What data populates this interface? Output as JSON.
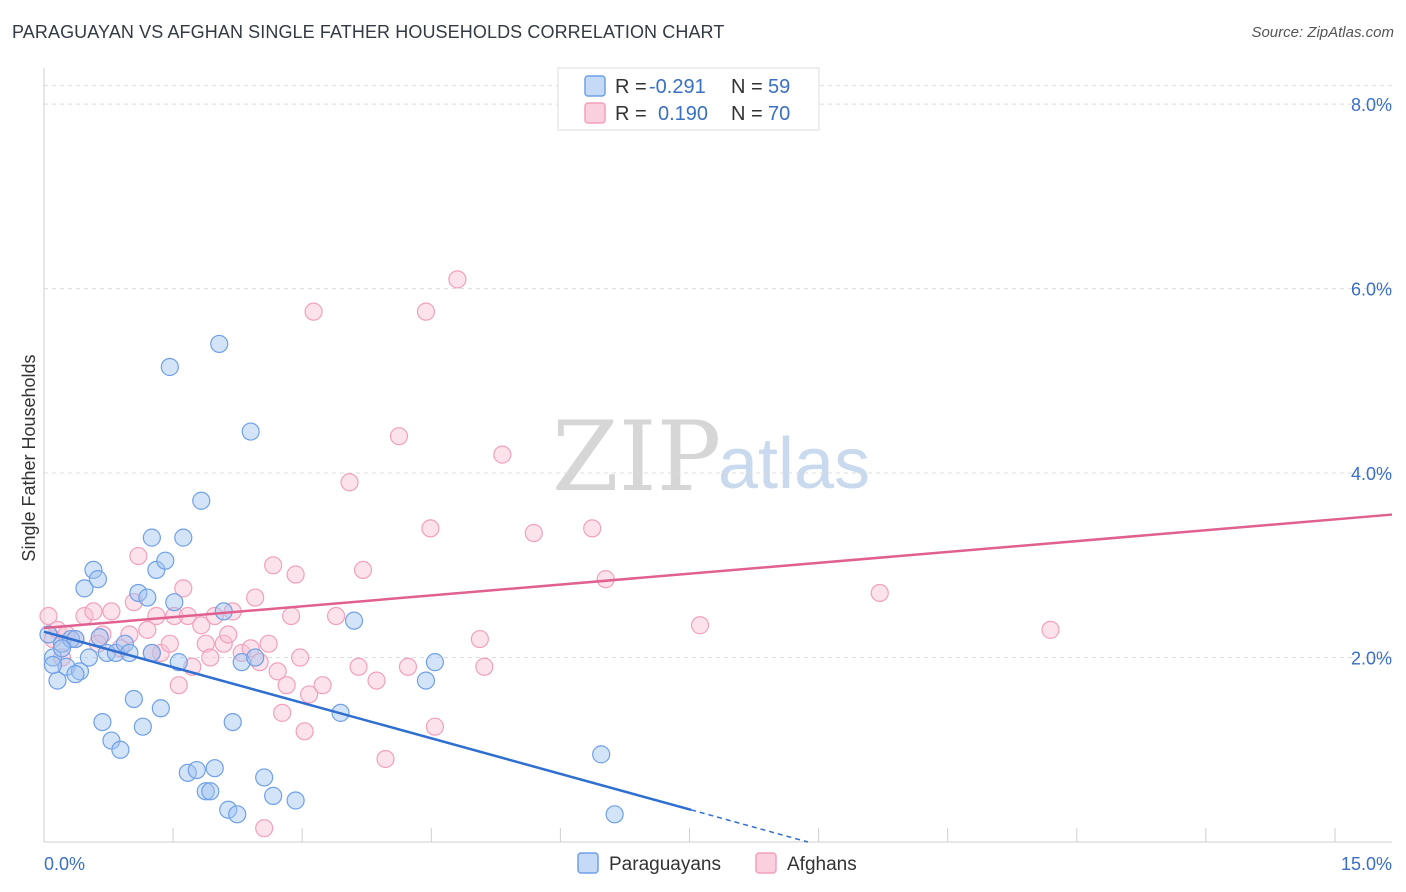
{
  "header": {
    "title": "PARAGUAYAN VS AFGHAN SINGLE FATHER HOUSEHOLDS CORRELATION CHART",
    "source": "Source: ZipAtlas.com"
  },
  "watermark": {
    "zip": "ZIP",
    "atlas": "atlas"
  },
  "legend": {
    "r_label": "R =",
    "n_label": "N =",
    "rows": [
      {
        "series": "Paraguayans",
        "r": "-0.291",
        "n": "59"
      },
      {
        "series": "Afghans",
        "r": "0.190",
        "n": "70"
      }
    ]
  },
  "chart_data": {
    "type": "scatter",
    "title": "PARAGUAYAN VS AFGHAN SINGLE FATHER HOUSEHOLDS CORRELATION CHART",
    "xlabel": "",
    "ylabel": "Single Father Households",
    "xlim": [
      0,
      15
    ],
    "ylim": [
      0,
      8.5
    ],
    "x_tick_labels": [
      "0.0%",
      "15.0%"
    ],
    "y_ticks": [
      2,
      4,
      6,
      8
    ],
    "y_tick_labels": [
      "2.0%",
      "4.0%",
      "6.0%",
      "8.0%"
    ],
    "colors": {
      "Paraguayans": "#6fa0e8",
      "Afghans": "#f2a0bc",
      "blue_line": "#2f6fd0",
      "pink_line": "#e0608f",
      "value_text": "#3a6fc4"
    },
    "series": [
      {
        "name": "Paraguayans",
        "r": -0.291,
        "n": 59,
        "trend": {
          "x0": 0.0,
          "y0": 2.28,
          "x1": 8.5,
          "y1": 0.0,
          "solid_until_x": 7.2
        },
        "points": [
          [
            0.05,
            2.25
          ],
          [
            0.1,
            2.0
          ],
          [
            0.15,
            1.75
          ],
          [
            0.2,
            2.15
          ],
          [
            0.25,
            1.9
          ],
          [
            0.3,
            2.2
          ],
          [
            0.35,
            2.2
          ],
          [
            0.4,
            1.85
          ],
          [
            0.45,
            2.75
          ],
          [
            0.5,
            2.0
          ],
          [
            0.55,
            2.95
          ],
          [
            0.6,
            2.85
          ],
          [
            0.65,
            1.3
          ],
          [
            0.7,
            2.05
          ],
          [
            0.75,
            1.1
          ],
          [
            0.8,
            2.05
          ],
          [
            0.85,
            1.0
          ],
          [
            0.9,
            2.15
          ],
          [
            0.95,
            2.05
          ],
          [
            1.0,
            1.55
          ],
          [
            1.05,
            2.7
          ],
          [
            1.1,
            1.25
          ],
          [
            1.15,
            2.65
          ],
          [
            1.2,
            3.3
          ],
          [
            1.25,
            2.95
          ],
          [
            1.3,
            1.45
          ],
          [
            1.35,
            3.05
          ],
          [
            1.4,
            5.15
          ],
          [
            1.45,
            2.6
          ],
          [
            1.5,
            1.95
          ],
          [
            1.55,
            3.3
          ],
          [
            1.6,
            0.75
          ],
          [
            1.7,
            0.78
          ],
          [
            1.75,
            3.7
          ],
          [
            1.8,
            0.55
          ],
          [
            1.9,
            0.8
          ],
          [
            1.95,
            5.4
          ],
          [
            2.0,
            2.5
          ],
          [
            2.05,
            0.35
          ],
          [
            2.1,
            1.3
          ],
          [
            2.15,
            0.3
          ],
          [
            2.2,
            1.95
          ],
          [
            2.3,
            4.45
          ],
          [
            2.35,
            2.0
          ],
          [
            2.45,
            0.7
          ],
          [
            2.55,
            0.5
          ],
          [
            2.8,
            0.45
          ],
          [
            3.3,
            1.4
          ],
          [
            3.45,
            2.4
          ],
          [
            4.25,
            1.75
          ],
          [
            4.35,
            1.95
          ],
          [
            6.2,
            0.95
          ],
          [
            6.35,
            0.3
          ],
          [
            0.1,
            1.92
          ],
          [
            0.2,
            2.1
          ],
          [
            1.2,
            2.05
          ],
          [
            0.62,
            2.22
          ],
          [
            0.35,
            1.82
          ],
          [
            1.85,
            0.55
          ]
        ]
      },
      {
        "name": "Afghans",
        "r": 0.19,
        "n": 70,
        "trend": {
          "x0": 0.0,
          "y0": 2.32,
          "x1": 15.0,
          "y1": 3.55
        },
        "points": [
          [
            0.05,
            2.45
          ],
          [
            0.1,
            2.2
          ],
          [
            0.15,
            2.3
          ],
          [
            0.25,
            2.25
          ],
          [
            0.35,
            2.2
          ],
          [
            0.45,
            2.45
          ],
          [
            0.55,
            2.5
          ],
          [
            0.65,
            2.25
          ],
          [
            0.75,
            2.5
          ],
          [
            0.85,
            2.1
          ],
          [
            0.95,
            2.25
          ],
          [
            1.0,
            2.6
          ],
          [
            1.05,
            3.1
          ],
          [
            1.15,
            2.3
          ],
          [
            1.25,
            2.45
          ],
          [
            1.3,
            2.05
          ],
          [
            1.4,
            2.15
          ],
          [
            1.45,
            2.45
          ],
          [
            1.5,
            1.7
          ],
          [
            1.55,
            2.75
          ],
          [
            1.6,
            2.45
          ],
          [
            1.65,
            1.9
          ],
          [
            1.75,
            2.35
          ],
          [
            1.8,
            2.15
          ],
          [
            1.85,
            2.0
          ],
          [
            1.9,
            2.45
          ],
          [
            2.0,
            2.15
          ],
          [
            2.05,
            2.25
          ],
          [
            2.1,
            2.5
          ],
          [
            2.2,
            2.05
          ],
          [
            2.3,
            2.1
          ],
          [
            2.35,
            2.65
          ],
          [
            2.4,
            1.95
          ],
          [
            2.45,
            0.15
          ],
          [
            2.5,
            2.15
          ],
          [
            2.55,
            3.0
          ],
          [
            2.6,
            1.85
          ],
          [
            2.65,
            1.4
          ],
          [
            2.7,
            1.7
          ],
          [
            2.75,
            2.45
          ],
          [
            2.8,
            2.9
          ],
          [
            2.85,
            2.0
          ],
          [
            2.9,
            1.2
          ],
          [
            2.95,
            1.6
          ],
          [
            3.0,
            5.75
          ],
          [
            3.1,
            1.7
          ],
          [
            3.25,
            2.45
          ],
          [
            3.4,
            3.9
          ],
          [
            3.5,
            1.9
          ],
          [
            3.55,
            2.95
          ],
          [
            3.7,
            1.75
          ],
          [
            3.8,
            0.9
          ],
          [
            3.95,
            4.4
          ],
          [
            4.05,
            1.9
          ],
          [
            4.25,
            5.75
          ],
          [
            4.3,
            3.4
          ],
          [
            4.35,
            1.25
          ],
          [
            4.6,
            6.1
          ],
          [
            4.85,
            2.2
          ],
          [
            4.9,
            1.9
          ],
          [
            5.1,
            4.2
          ],
          [
            5.45,
            3.35
          ],
          [
            6.1,
            3.4
          ],
          [
            6.25,
            2.85
          ],
          [
            7.3,
            2.35
          ],
          [
            9.3,
            2.7
          ],
          [
            11.2,
            2.3
          ],
          [
            0.2,
            2.0
          ],
          [
            0.6,
            2.15
          ],
          [
            1.2,
            2.05
          ]
        ]
      }
    ]
  },
  "bottom_legend": [
    {
      "label": "Paraguayans"
    },
    {
      "label": "Afghans"
    }
  ]
}
